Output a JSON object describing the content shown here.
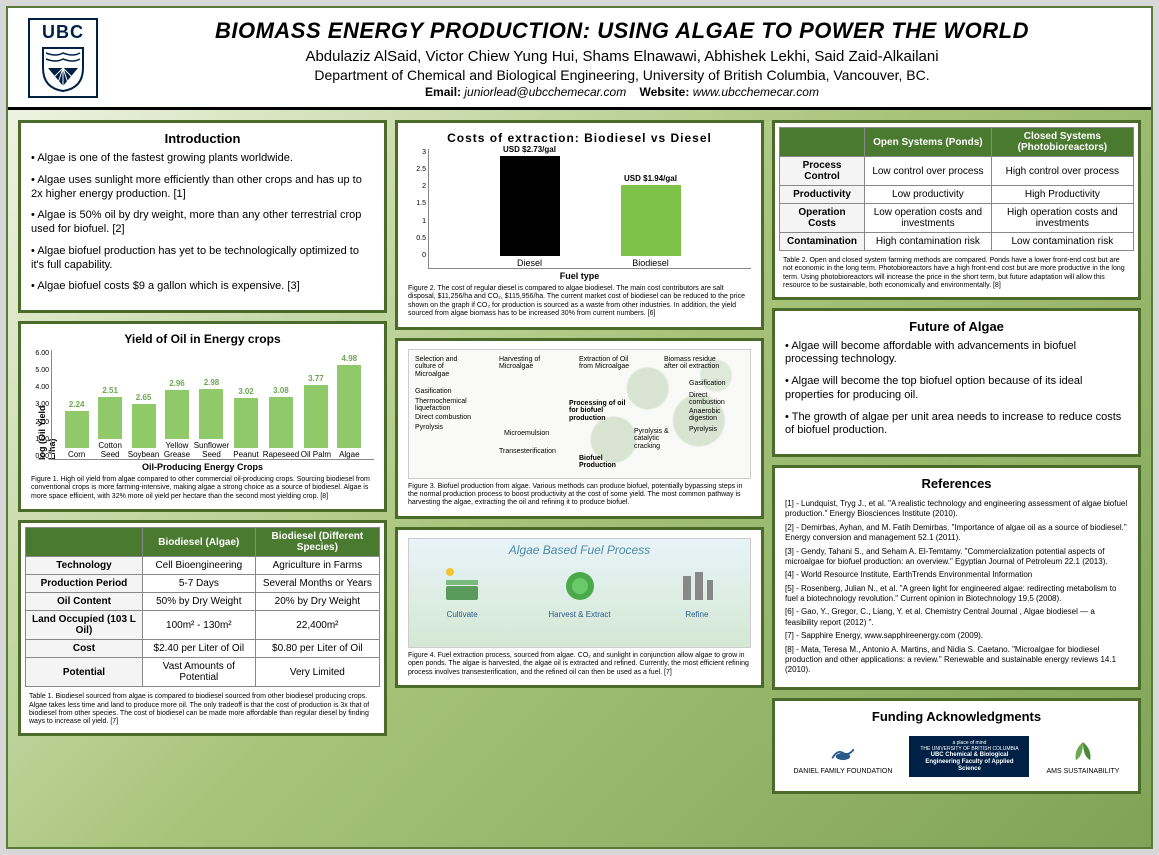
{
  "header": {
    "logo_text": "UBC",
    "title": "BIOMASS ENERGY PRODUCTION: USING ALGAE TO POWER THE WORLD",
    "authors": "Abdulaziz AlSaid, Victor Chiew Yung Hui, Shams Elnawawi, Abhishek Lekhi, Said Zaid-Alkailani",
    "department": "Department of Chemical and Biological Engineering, University of British Columbia, Vancouver, BC.",
    "email_label": "Email:",
    "email": "juniorlead@ubcchemecar.com",
    "website_label": "Website:",
    "website": "www.ubcchemecar.com"
  },
  "intro": {
    "title": "Introduction",
    "bullets": [
      "Algae is one of the fastest growing plants worldwide.",
      "Algae uses sunlight more efficiently than other crops and has up to 2x higher energy production. [1]",
      "Algae is 50% oil by dry weight, more than any other terrestrial crop used for biofuel. [2]",
      "Algae biofuel production has yet to be technologically optimized to it's full capability.",
      "Algae biofuel costs $9 a gallon which is expensive. [3]"
    ]
  },
  "yield_chart": {
    "title": "Yield of Oil in Energy crops",
    "type": "bar",
    "y_label": "log (Oil Yield L/ha)",
    "x_label": "Oil-Producing Energy Crops",
    "ylim": [
      0,
      6
    ],
    "ytick_step": 1,
    "categories": [
      "Corn",
      "Cotton Seed",
      "Soybean",
      "Yellow Grease",
      "Sunflower Seed",
      "Peanut",
      "Rapeseed",
      "Oil Palm",
      "Algae"
    ],
    "values": [
      2.24,
      2.51,
      2.65,
      2.96,
      2.98,
      3.02,
      3.08,
      3.77,
      4.98
    ],
    "bar_color": "#8fc96a",
    "value_color": "#6aa84f",
    "caption": "Figure 1. High oil yield from algae compared to other commercial oil-producing crops. Sourcing biodiesel from conventional crops is more farming-intensive, making algae a strong choice as a source of biodiesel. Algae is more space efficient, with 32% more oil yield per hectare than the second most yielding crop. [8]"
  },
  "table1": {
    "headers": [
      "",
      "Biodiesel (Algae)",
      "Biodiesel (Different Species)"
    ],
    "rows": [
      [
        "Technology",
        "Cell Bioengineering",
        "Agriculture in Farms"
      ],
      [
        "Production Period",
        "5-7 Days",
        "Several Months or Years"
      ],
      [
        "Oil Content",
        "50% by Dry Weight",
        "20% by Dry Weight"
      ],
      [
        "Land Occupied (103 L Oil)",
        "100m² - 130m²",
        "22,400m²"
      ],
      [
        "Cost",
        "$2.40 per Liter of Oil",
        "$0.80 per Liter of Oil"
      ],
      [
        "Potential",
        "Vast Amounts of Potential",
        "Very Limited"
      ]
    ],
    "caption": "Table 1. Biodiesel sourced from algae is compared to biodiesel sourced from other biodiesel producing crops. Algae takes less time and land to produce more oil. The only tradeoff is that the cost of production is 3x that of biodiesel from other species. The cost of biodiesel can be made more affordable than regular diesel by finding ways to increase oil yield. [7]"
  },
  "cost_chart": {
    "title": "Costs of extraction: Biodiesel vs Diesel",
    "type": "bar",
    "x_label": "Fuel type",
    "ylim": [
      0,
      3
    ],
    "ytick_step": 0.5,
    "categories": [
      "Diesel",
      "Biodiesel"
    ],
    "values": [
      2.73,
      1.94
    ],
    "value_labels": [
      "USD $2.73/gal",
      "USD $1.94/gal"
    ],
    "bar_colors": [
      "#000000",
      "#7fc24a"
    ],
    "caption": "Figure 2. The cost of regular diesel is compared to algae biodiesel. The main cost contributors are salt disposal, $11,256/ha and CO₂, $115,956/ha. The current market cost of biodiesel can be reduced to the price shown on the graph if CO₂ for production is sourced as a waste from other industries. In addition, the yield sourced from algae biomass has to be increased 30% from current numbers. [6]"
  },
  "diagram": {
    "caption": "Figure 3. Biofuel production from algae. Various methods can produce biofuel, potentially bypassing steps in the normal production process to boost productivity at the cost of some yield. The most common pathway is harvesting the algae, extracting the oil and refining it to produce biofuel.",
    "nodes": [
      "Selection and culture of Microalgae",
      "Harvesting of Microalgae",
      "Extraction of Oil from Microalgae",
      "Biomass residue after oil extraction",
      "Processing of oil for biofuel production",
      "Biofuel Production",
      "Gasification",
      "Thermochemical liquefaction",
      "Direct combustion",
      "Pyrolysis",
      "Microemulsion",
      "Transesterification",
      "Pyrolysis & catalytic cracking",
      "Gasification",
      "Direct combustion",
      "Anaerobic digestion",
      "Pyrolysis"
    ]
  },
  "process": {
    "title": "Algae Based Fuel Process",
    "steps": [
      "Cultivate",
      "Harvest & Extract",
      "Refine"
    ],
    "caption": "Figure 4. Fuel extraction process, sourced from algae. CO₂ and sunlight in conjunction allow algae to grow in open ponds. The algae is harvested, the algae oil is extracted and refined. Currently, the most efficient refining process involves transesterification, and the refined oil can then be used as a fuel. [7]"
  },
  "table2": {
    "headers": [
      "",
      "Open Systems (Ponds)",
      "Closed Systems (Photobioreactors)"
    ],
    "rows": [
      [
        "Process Control",
        "Low control over process",
        "High control over process"
      ],
      [
        "Productivity",
        "Low productivity",
        "High Productivity"
      ],
      [
        "Operation Costs",
        "Low operation costs and investments",
        "High operation costs and investments"
      ],
      [
        "Contamination",
        "High contamination risk",
        "Low contamination risk"
      ]
    ],
    "caption": "Table 2. Open and closed system farming methods are compared. Ponds have a lower front-end cost but are not economic in the long term. Photobioreactors have a high front-end cost but are more productive in the long term. Using photobioreactors will increase the price in the short term, but future adaptation will allow this resource to be sustainable, both economically and environmentally. [8]"
  },
  "future": {
    "title": "Future of Algae",
    "bullets": [
      "Algae will become affordable with advancements in biofuel processing technology.",
      "Algae will become the top biofuel option because of its ideal properties for producing oil.",
      "The growth of algae per unit area needs to increase to reduce costs of biofuel production."
    ]
  },
  "references": {
    "title": "References",
    "items": [
      "[1] - Lundquist, Tryg J., et al. \"A realistic technology and engineering assessment of algae biofuel production.\" Energy Biosciences Institute (2010).",
      "[2] - Demirbas, Ayhan, and M. Fatih Demirbas. \"Importance of algae oil as a source of biodiesel.\" Energy conversion and management 52.1 (2011).",
      "[3] - Gendy, Tahani S., and Seham A. El-Temtamy. \"Commercialization potential aspects of microalgae for biofuel production: an overview.\" Egyptian Journal of Petroleum 22.1 (2013).",
      "[4] - World Resource Institute, EarthTrends Environmental Information",
      "[5] - Rosenberg, Julian N., et al. \"A green light for engineered algae: redirecting metabolism to fuel a biotechnology revolution.\" Current opinion in Biotechnology 19.5 (2008).",
      "[6] - Gao, Y., Gregor, C., Liang, Y. et al. Chemistry Central Journal , Algae biodiesel — a feasibility report (2012) \".",
      "[7] - Sapphire Energy, www.sapphireenergy.com (2009).",
      "[8] - Mata, Teresa M., Antonio A. Martins, and Nidia S. Caetano. \"Microalgae for biodiesel production and other applications: a review.\" Renewable and sustainable energy reviews 14.1 (2010)."
    ]
  },
  "funding": {
    "title": "Funding Acknowledgments",
    "funders": [
      "DANIEL FAMILY FOUNDATION",
      "UBC Chemical & Biological Engineering Faculty of Applied Science",
      "AMS SUSTAINABILITY"
    ]
  },
  "colors": {
    "panel_border": "#4a6b2a",
    "table_header_bg": "#4a7a2f",
    "ubc_blue": "#002145"
  }
}
